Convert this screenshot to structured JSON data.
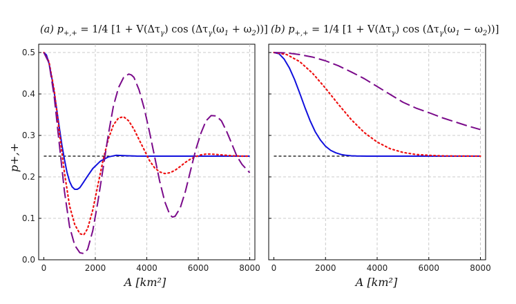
{
  "chart_data": [
    {
      "type": "line",
      "panel": "a",
      "title": "(a)  p+,+ = 1/4 [1 + V(Δτγ) cos (Δτγ(ω1 + ω2))]",
      "title_parts": {
        "tag": "(a)",
        "lhs": "p",
        "lhs_sub": "+,+",
        "eq": "=",
        "frac_num": "1",
        "frac_den": "4",
        "body": "[1 + V(Δτ",
        "g1": "γ",
        "body2": ") cos (Δτ",
        "g2": "γ",
        "body3": "(ω",
        "s1": "1",
        "op": " + ",
        "om2": "ω",
        "s2": "2",
        "end": "))]"
      },
      "xlabel": "A [km²]",
      "ylabel": "p+,+",
      "xlim": [
        -200,
        8200
      ],
      "ylim": [
        0.0,
        0.52
      ],
      "xticks": [
        0,
        2000,
        4000,
        6000,
        8000
      ],
      "yticks": [
        0.0,
        0.1,
        0.2,
        0.3,
        0.4,
        0.5
      ],
      "xtick_labels": [
        "0",
        "2000",
        "4000",
        "6000",
        "8000"
      ],
      "ytick_labels": [
        "0.0",
        "0.1",
        "0.2",
        "0.3",
        "0.4",
        "0.5"
      ],
      "reference_line": 0.25,
      "series": [
        {
          "name": "blue-solid",
          "color": "#1010dd",
          "dash": "none",
          "x": [
            0,
            100,
            200,
            300,
            400,
            500,
            600,
            700,
            800,
            900,
            1000,
            1100,
            1200,
            1300,
            1400,
            1500,
            1700,
            1900,
            2200,
            2500,
            2800,
            3200,
            3600,
            4000,
            5000,
            6000,
            7000,
            8000
          ],
          "y": [
            0.5,
            0.494,
            0.474,
            0.443,
            0.405,
            0.363,
            0.32,
            0.278,
            0.242,
            0.211,
            0.189,
            0.176,
            0.17,
            0.17,
            0.174,
            0.183,
            0.202,
            0.22,
            0.238,
            0.248,
            0.252,
            0.251,
            0.2502,
            0.25,
            0.25,
            0.25,
            0.25,
            0.25
          ]
        },
        {
          "name": "red-dotted",
          "color": "#ee1111",
          "dash": "2,4",
          "x": [
            0,
            200,
            400,
            600,
            800,
            1000,
            1200,
            1400,
            1550,
            1700,
            1900,
            2100,
            2300,
            2500,
            2700,
            2900,
            3100,
            3300,
            3500,
            3700,
            3900,
            4100,
            4300,
            4500,
            4700,
            4900,
            5100,
            5300,
            5500,
            5700,
            5900,
            6100,
            6300,
            6500,
            6700,
            6900,
            7100,
            7300,
            7500,
            7700,
            8000
          ],
          "y": [
            0.5,
            0.478,
            0.41,
            0.31,
            0.21,
            0.13,
            0.085,
            0.063,
            0.06,
            0.075,
            0.12,
            0.18,
            0.24,
            0.29,
            0.325,
            0.342,
            0.345,
            0.335,
            0.315,
            0.29,
            0.265,
            0.24,
            0.222,
            0.212,
            0.208,
            0.21,
            0.216,
            0.225,
            0.235,
            0.243,
            0.249,
            0.253,
            0.255,
            0.255,
            0.254,
            0.253,
            0.252,
            0.251,
            0.2505,
            0.25,
            0.25
          ]
        },
        {
          "name": "purple-dashed",
          "color": "#7a0a8a",
          "dash": "16,6",
          "x": [
            0,
            200,
            400,
            600,
            800,
            1000,
            1200,
            1400,
            1550,
            1700,
            1900,
            2100,
            2300,
            2500,
            2700,
            2900,
            3100,
            3300,
            3400,
            3500,
            3700,
            3900,
            4100,
            4300,
            4500,
            4700,
            4900,
            5000,
            5100,
            5300,
            5500,
            5700,
            5900,
            6100,
            6300,
            6500,
            6700,
            6900,
            7100,
            7300,
            7500,
            7700,
            8000
          ],
          "y": [
            0.5,
            0.475,
            0.395,
            0.28,
            0.165,
            0.08,
            0.035,
            0.017,
            0.015,
            0.025,
            0.07,
            0.14,
            0.22,
            0.3,
            0.37,
            0.415,
            0.44,
            0.448,
            0.446,
            0.44,
            0.41,
            0.365,
            0.31,
            0.25,
            0.19,
            0.14,
            0.108,
            0.103,
            0.105,
            0.125,
            0.165,
            0.215,
            0.265,
            0.305,
            0.335,
            0.348,
            0.347,
            0.335,
            0.31,
            0.28,
            0.25,
            0.23,
            0.21
          ]
        }
      ]
    },
    {
      "type": "line",
      "panel": "b",
      "title": "(b)  p+,+ = 1/4 [1 + V(Δτγ) cos (Δτγ(ω1 − ω2))]",
      "title_parts": {
        "tag": "(b)",
        "lhs": "p",
        "lhs_sub": "+,+",
        "eq": "=",
        "frac_num": "1",
        "frac_den": "4",
        "body": "[1 + V(Δτ",
        "g1": "γ",
        "body2": ") cos (Δτ",
        "g2": "γ",
        "body3": "(ω",
        "s1": "1",
        "op": " − ",
        "om2": "ω",
        "s2": "2",
        "end": "))]"
      },
      "xlabel": "A [km²]",
      "xlim": [
        -200,
        8200
      ],
      "ylim": [
        0.0,
        0.52
      ],
      "xticks": [
        0,
        2000,
        4000,
        6000,
        8000
      ],
      "xtick_labels": [
        "0",
        "2000",
        "4000",
        "6000",
        "8000"
      ],
      "reference_line": 0.25,
      "series": [
        {
          "name": "blue-solid",
          "color": "#1010dd",
          "dash": "none",
          "x": [
            0,
            200,
            400,
            600,
            800,
            1000,
            1200,
            1400,
            1600,
            1800,
            2000,
            2200,
            2400,
            2600,
            2800,
            3000,
            3200,
            3400,
            3600,
            4000,
            5000,
            6000,
            7000,
            8000
          ],
          "y": [
            0.5,
            0.497,
            0.484,
            0.463,
            0.435,
            0.402,
            0.368,
            0.336,
            0.309,
            0.289,
            0.274,
            0.264,
            0.258,
            0.254,
            0.252,
            0.2508,
            0.2503,
            0.2501,
            0.25,
            0.25,
            0.25,
            0.25,
            0.25,
            0.25
          ]
        },
        {
          "name": "red-dotted",
          "color": "#ee1111",
          "dash": "2,4",
          "x": [
            0,
            500,
            1000,
            1500,
            2000,
            2500,
            3000,
            3500,
            4000,
            4500,
            5000,
            5500,
            6000,
            6500,
            7000,
            7500,
            8000
          ],
          "y": [
            0.5,
            0.495,
            0.478,
            0.45,
            0.414,
            0.375,
            0.338,
            0.307,
            0.284,
            0.268,
            0.259,
            0.254,
            0.252,
            0.2507,
            0.2503,
            0.2501,
            0.25
          ]
        },
        {
          "name": "purple-dashed",
          "color": "#7a0a8a",
          "dash": "16,6",
          "x": [
            0,
            500,
            1000,
            1500,
            2000,
            2500,
            3000,
            3500,
            4000,
            4500,
            5000,
            5500,
            6000,
            6500,
            7000,
            7500,
            8000
          ],
          "y": [
            0.5,
            0.499,
            0.495,
            0.489,
            0.48,
            0.468,
            0.453,
            0.437,
            0.418,
            0.399,
            0.38,
            0.366,
            0.355,
            0.343,
            0.333,
            0.323,
            0.314
          ]
        }
      ]
    }
  ]
}
